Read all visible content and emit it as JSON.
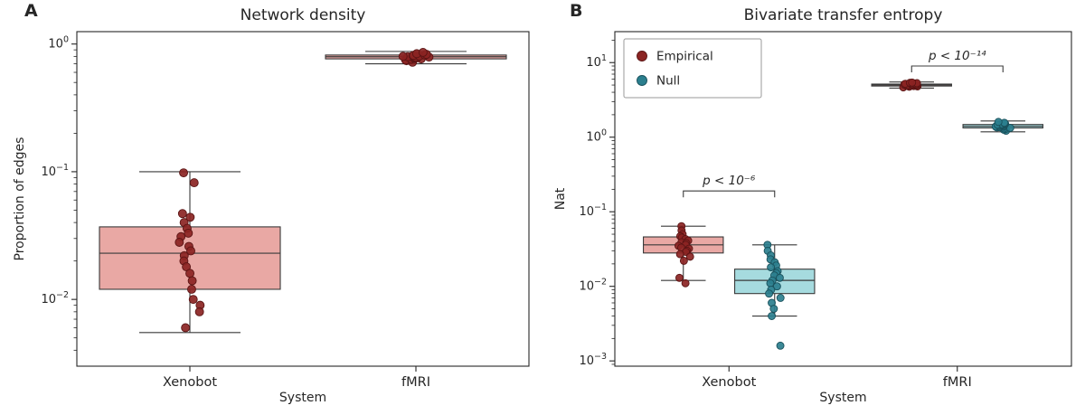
{
  "figure": {
    "background": "#ffffff"
  },
  "chart_data": [
    {
      "type": "boxplot",
      "panel_label": "A",
      "title": "Network density",
      "xlabel": "System",
      "ylabel": "Proportion of edges",
      "yscale": "log",
      "ylim": [
        0.003,
        1.25
      ],
      "yticks": [
        {
          "value": 1,
          "exp": 0
        },
        {
          "value": 0.1,
          "exp": -1
        },
        {
          "value": 0.01,
          "exp": -2
        }
      ],
      "categories": [
        "Xenobot",
        "fMRI"
      ],
      "legend": null,
      "annotations": [],
      "style": {
        "jitter": 0.085,
        "point_radius": 4.5
      },
      "series": [
        {
          "name": "Empirical",
          "point_color": "#8b2423",
          "point_edge": "#5a1414",
          "box_fill": "#e9a8a4",
          "offset": 0,
          "box_width": 0.8,
          "groups": [
            {
              "category": "Xenobot",
              "whisker_low": 0.0055,
              "q1": 0.012,
              "median": 0.023,
              "q3": 0.037,
              "whisker_high": 0.1,
              "points": [
                0.098,
                0.082,
                0.047,
                0.044,
                0.04,
                0.036,
                0.033,
                0.031,
                0.028,
                0.026,
                0.024,
                0.022,
                0.02,
                0.018,
                0.016,
                0.014,
                0.012,
                0.01,
                0.009,
                0.008,
                0.006
              ]
            },
            {
              "category": "fMRI",
              "whisker_low": 0.7,
              "q1": 0.765,
              "median": 0.795,
              "q3": 0.82,
              "whisker_high": 0.875,
              "points": [
                0.72,
                0.74,
                0.75,
                0.76,
                0.765,
                0.77,
                0.775,
                0.78,
                0.782,
                0.788,
                0.79,
                0.795,
                0.8,
                0.805,
                0.81,
                0.815,
                0.82,
                0.83,
                0.84,
                0.86
              ]
            }
          ]
        }
      ]
    },
    {
      "type": "boxplot",
      "panel_label": "B",
      "title": "Bivariate transfer entropy",
      "xlabel": "System",
      "ylabel": "Nat",
      "yscale": "log",
      "ylim": [
        0.00085,
        26
      ],
      "yticks": [
        {
          "value": 10,
          "exp": 1
        },
        {
          "value": 1,
          "exp": 0
        },
        {
          "value": 0.1,
          "exp": -1
        },
        {
          "value": 0.01,
          "exp": -2
        },
        {
          "value": 0.001,
          "exp": -3
        }
      ],
      "categories": [
        "Xenobot",
        "fMRI"
      ],
      "legend": {
        "entries": [
          {
            "label": "Empirical",
            "color": "#8b2423",
            "edge": "#5a1414"
          },
          {
            "label": "Null",
            "color": "#2b7f8e",
            "edge": "#19505b"
          }
        ]
      },
      "annotations": [
        {
          "text": "p < 10⁻⁶",
          "x1": -0.2,
          "x2": 0.2,
          "y": 0.19
        },
        {
          "text": "p < 10⁻¹⁴",
          "x1": 0.8,
          "x2": 1.2,
          "y": 9
        }
      ],
      "style": {
        "jitter": 0.055,
        "point_radius": 4
      },
      "series": [
        {
          "name": "Empirical",
          "point_color": "#8b2423",
          "point_edge": "#5a1414",
          "box_fill": "#e9a8a4",
          "offset": -0.2,
          "box_width": 0.35,
          "groups": [
            {
              "category": "Xenobot",
              "whisker_low": 0.012,
              "q1": 0.028,
              "median": 0.036,
              "q3": 0.046,
              "whisker_high": 0.064,
              "points": [
                0.064,
                0.056,
                0.05,
                0.047,
                0.045,
                0.043,
                0.041,
                0.039,
                0.038,
                0.036,
                0.035,
                0.033,
                0.032,
                0.03,
                0.029,
                0.027,
                0.025,
                0.022,
                0.013,
                0.011
              ]
            },
            {
              "category": "fMRI",
              "whisker_low": 4.55,
              "q1": 4.85,
              "median": 5.0,
              "q3": 5.15,
              "whisker_high": 5.5,
              "points": [
                4.65,
                4.75,
                4.8,
                4.85,
                4.9,
                4.92,
                4.95,
                4.98,
                5.0,
                5.02,
                5.05,
                5.08,
                5.1,
                5.12,
                5.15,
                5.2,
                5.25,
                5.3,
                5.35,
                5.4
              ]
            }
          ]
        },
        {
          "name": "Null",
          "point_color": "#2b7f8e",
          "point_edge": "#19505b",
          "box_fill": "#a6dbdf",
          "offset": 0.2,
          "box_width": 0.35,
          "groups": [
            {
              "category": "Xenobot",
              "whisker_low": 0.004,
              "q1": 0.008,
              "median": 0.012,
              "q3": 0.017,
              "whisker_high": 0.036,
              "points": [
                0.036,
                0.03,
                0.026,
                0.023,
                0.021,
                0.019,
                0.018,
                0.016,
                0.015,
                0.014,
                0.013,
                0.012,
                0.011,
                0.01,
                0.009,
                0.008,
                0.007,
                0.006,
                0.005,
                0.004,
                0.0016
              ]
            },
            {
              "category": "fMRI",
              "whisker_low": 1.18,
              "q1": 1.33,
              "median": 1.4,
              "q3": 1.48,
              "whisker_high": 1.65,
              "points": [
                1.22,
                1.26,
                1.29,
                1.31,
                1.33,
                1.35,
                1.36,
                1.38,
                1.39,
                1.4,
                1.41,
                1.43,
                1.44,
                1.46,
                1.47,
                1.49,
                1.51,
                1.53,
                1.56,
                1.6
              ]
            }
          ]
        }
      ]
    }
  ]
}
